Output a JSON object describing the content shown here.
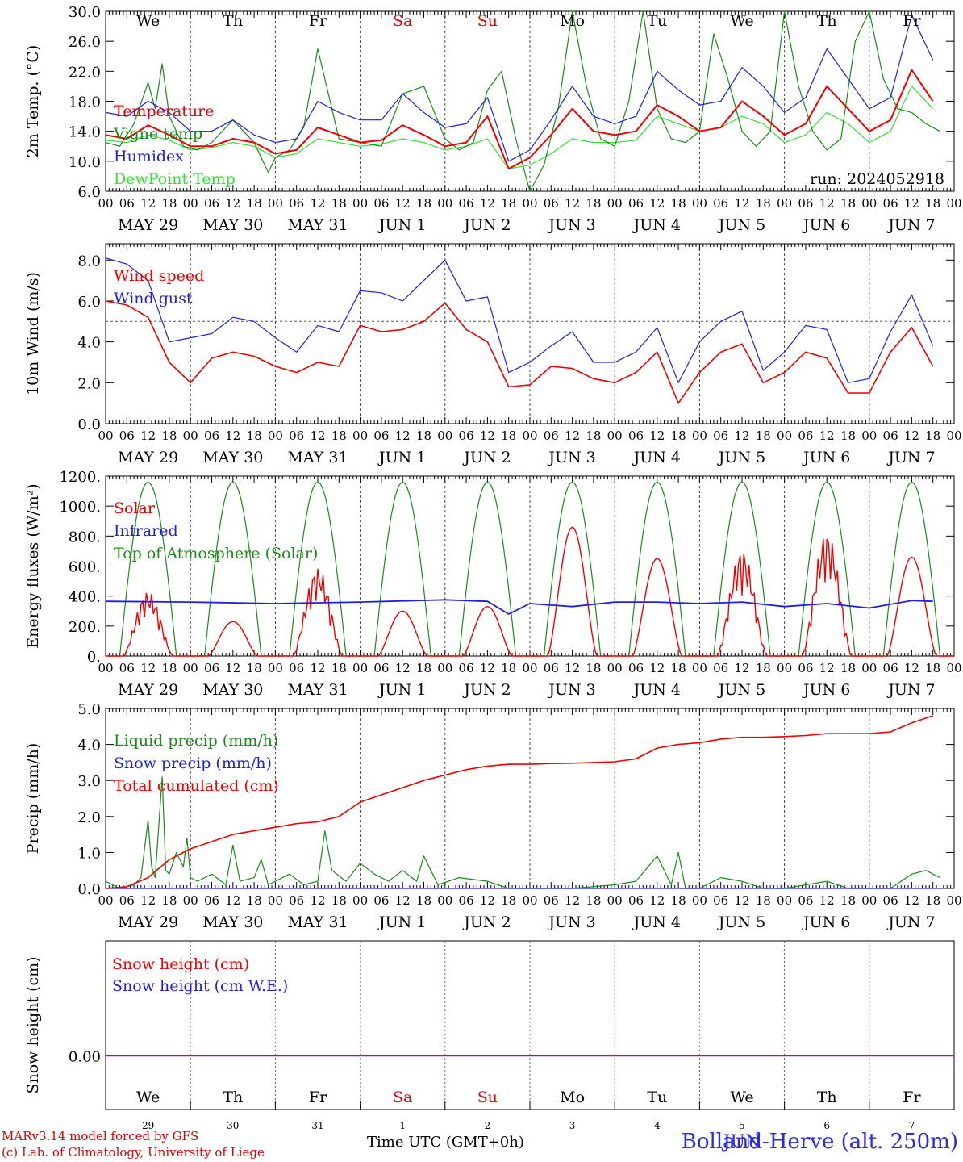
{
  "run_label": "run: 2024052918",
  "footer": {
    "credit1": "MARv3.14 model forced by GFS",
    "credit2": "(c) Lab. of Climatology, University of Liege",
    "xlabel": "Time UTC (GMT+0h)",
    "station": "Bolland-Herve (alt. 250m)",
    "month_label": "JUN"
  },
  "colors": {
    "red": "#ee0000",
    "green": "#1a8a1a",
    "blue": "#1f1fe0",
    "lightgreen": "#33e033",
    "purple": "#7a2a8a",
    "weekend": "#ee0000"
  },
  "weekday_labels": [
    {
      "text": "We",
      "weekend": false
    },
    {
      "text": "Th",
      "weekend": false
    },
    {
      "text": "Fr",
      "weekend": false
    },
    {
      "text": "Sa",
      "weekend": true
    },
    {
      "text": "Su",
      "weekend": true
    },
    {
      "text": "Mo",
      "weekend": false
    },
    {
      "text": "Tu",
      "weekend": false
    },
    {
      "text": "We",
      "weekend": false
    },
    {
      "text": "Th",
      "weekend": false
    },
    {
      "text": "Fr",
      "weekend": false
    }
  ],
  "date_labels": [
    "MAY 29",
    "MAY 30",
    "MAY 31",
    "JUN  1",
    "JUN  2",
    "JUN  3",
    "JUN  4",
    "JUN  5",
    "JUN  6",
    "JUN  7"
  ],
  "hour_labels": [
    "00",
    "06",
    "12",
    "18"
  ],
  "bottom_day_numbers": [
    "29",
    "30",
    "31",
    "1",
    "2",
    "3",
    "4",
    "5",
    "6",
    "7"
  ],
  "chart_data": [
    {
      "type": "line",
      "ylabel": "2m Temp. (°C)",
      "ylim": [
        6,
        30
      ],
      "yticks": [
        "6.0",
        "10.0",
        "14.0",
        "18.0",
        "22.0",
        "26.0",
        "30.0"
      ],
      "legend_placement": "left",
      "x_unit": "hours since 2024-05-29 00 UTC",
      "series": [
        {
          "name": "Temperature",
          "color": "#ee0000",
          "x": [
            0,
            6,
            12,
            18,
            24,
            30,
            36,
            42,
            48,
            54,
            60,
            66,
            72,
            78,
            84,
            90,
            96,
            102,
            108,
            114,
            120,
            126,
            132,
            138,
            144,
            150,
            156,
            162,
            168,
            174,
            180,
            186,
            192,
            198,
            204,
            210,
            216,
            222,
            228,
            234
          ],
          "y": [
            13.5,
            13.0,
            14.8,
            13.5,
            12.0,
            12.0,
            13.0,
            12.5,
            11.0,
            11.5,
            14.5,
            13.5,
            12.5,
            12.8,
            14.8,
            13.5,
            12.0,
            12.5,
            16.0,
            9.0,
            10.5,
            13.5,
            17.0,
            14.0,
            13.5,
            14.0,
            17.5,
            16.0,
            14.0,
            14.5,
            18.0,
            16.0,
            13.5,
            15.0,
            20.0,
            17.0,
            14.0,
            15.5,
            22.2,
            18.0
          ]
        },
        {
          "name": "Vigne temp",
          "color": "#1a8a1a",
          "x": [
            0,
            4,
            8,
            12,
            14,
            16,
            18,
            22,
            26,
            30,
            36,
            42,
            46,
            48,
            52,
            56,
            60,
            64,
            66,
            72,
            78,
            84,
            90,
            96,
            100,
            104,
            108,
            112,
            116,
            120,
            124,
            128,
            132,
            136,
            140,
            144,
            148,
            152,
            156,
            160,
            164,
            168,
            172,
            176,
            180,
            184,
            188,
            192,
            196,
            200,
            204,
            208,
            212,
            216,
            220,
            224,
            228,
            232,
            236
          ],
          "y": [
            12.5,
            12.0,
            15.0,
            20.5,
            17.0,
            23.0,
            16.0,
            12.0,
            11.5,
            12.5,
            15.5,
            12.5,
            8.5,
            10.5,
            11.5,
            14.5,
            25.0,
            17.0,
            13.0,
            12.5,
            12.0,
            19.0,
            20.0,
            13.0,
            11.5,
            12.5,
            19.5,
            22.0,
            13.0,
            6.0,
            9.5,
            17.0,
            30.0,
            20.0,
            13.0,
            12.0,
            18.0,
            30.0,
            17.0,
            13.0,
            12.5,
            14.0,
            27.0,
            21.0,
            14.0,
            12.0,
            14.0,
            30.0,
            20.0,
            14.0,
            11.5,
            13.0,
            26.0,
            30.0,
            21.0,
            17.0,
            16.5,
            15.0,
            14.0
          ]
        },
        {
          "name": "Humidex",
          "color": "#1f1fe0",
          "x": [
            0,
            6,
            12,
            18,
            24,
            30,
            36,
            42,
            48,
            54,
            60,
            66,
            72,
            78,
            84,
            90,
            96,
            102,
            108,
            114,
            120,
            126,
            132,
            138,
            144,
            150,
            156,
            162,
            168,
            174,
            180,
            186,
            192,
            198,
            204,
            210,
            216,
            222,
            228,
            234
          ],
          "y": [
            16.5,
            16.0,
            18.0,
            16.5,
            14.0,
            14.0,
            15.5,
            13.5,
            12.5,
            13.0,
            18.0,
            16.5,
            15.5,
            15.5,
            19.0,
            16.5,
            14.5,
            15.0,
            18.5,
            10.0,
            11.5,
            15.5,
            20.0,
            16.0,
            15.0,
            16.0,
            22.0,
            19.5,
            17.5,
            18.0,
            22.5,
            20.0,
            16.5,
            18.5,
            25.0,
            21.0,
            17.0,
            18.5,
            29.5,
            23.5
          ]
        },
        {
          "name": "DewPoint Temp",
          "color": "#33e033",
          "x": [
            0,
            6,
            12,
            18,
            24,
            30,
            36,
            42,
            48,
            54,
            60,
            66,
            72,
            78,
            84,
            90,
            96,
            102,
            108,
            114,
            120,
            126,
            132,
            138,
            144,
            150,
            156,
            162,
            168,
            174,
            180,
            186,
            192,
            198,
            204,
            210,
            216,
            222,
            228,
            234
          ],
          "y": [
            12.8,
            12.5,
            13.5,
            12.8,
            11.5,
            11.8,
            12.5,
            12.0,
            10.5,
            11.0,
            13.0,
            12.5,
            12.0,
            12.3,
            13.0,
            12.5,
            11.5,
            12.0,
            13.0,
            9.0,
            9.5,
            11.0,
            13.0,
            12.5,
            12.5,
            12.8,
            16.0,
            15.0,
            14.0,
            14.5,
            16.0,
            15.0,
            12.5,
            13.5,
            16.5,
            15.0,
            12.5,
            14.0,
            20.0,
            17.0
          ]
        }
      ]
    },
    {
      "type": "line",
      "ylabel": "10m Wind (m/s)",
      "ylim": [
        0,
        8.8
      ],
      "yticks": [
        "0.0",
        "2.0",
        "4.0",
        "6.0",
        "8.0"
      ],
      "reference_line": 5.0,
      "x_unit": "hours since 2024-05-29 00 UTC",
      "series": [
        {
          "name": "Wind speed",
          "color": "#ee0000",
          "x": [
            0,
            6,
            12,
            18,
            24,
            30,
            36,
            42,
            48,
            54,
            60,
            66,
            72,
            78,
            84,
            90,
            96,
            102,
            108,
            114,
            120,
            126,
            132,
            138,
            144,
            150,
            156,
            162,
            168,
            174,
            180,
            186,
            192,
            198,
            204,
            210,
            216,
            222,
            228,
            234
          ],
          "y": [
            6.0,
            5.8,
            5.2,
            3.0,
            2.0,
            3.2,
            3.5,
            3.3,
            2.8,
            2.5,
            3.0,
            2.8,
            4.8,
            4.5,
            4.6,
            5.0,
            5.9,
            4.6,
            4.0,
            1.8,
            1.9,
            2.8,
            2.7,
            2.2,
            2.0,
            2.5,
            3.5,
            1.0,
            2.5,
            3.5,
            3.9,
            2.0,
            2.5,
            3.5,
            3.2,
            1.5,
            1.5,
            3.5,
            4.7,
            2.8
          ]
        },
        {
          "name": "Wind gust",
          "color": "#1f1fe0",
          "x": [
            0,
            6,
            12,
            18,
            24,
            30,
            36,
            42,
            48,
            54,
            60,
            66,
            72,
            78,
            84,
            90,
            96,
            102,
            108,
            114,
            120,
            126,
            132,
            138,
            144,
            150,
            156,
            162,
            168,
            174,
            180,
            186,
            192,
            198,
            204,
            210,
            216,
            222,
            228,
            234
          ],
          "y": [
            8.1,
            7.8,
            7.0,
            4.0,
            4.2,
            4.4,
            5.2,
            5.0,
            4.2,
            3.5,
            4.8,
            4.5,
            6.5,
            6.4,
            6.0,
            7.0,
            8.0,
            6.0,
            6.2,
            2.5,
            3.0,
            3.8,
            4.5,
            3.0,
            3.0,
            3.5,
            4.7,
            2.0,
            4.0,
            5.0,
            5.5,
            2.6,
            3.5,
            4.8,
            4.6,
            2.0,
            2.2,
            4.5,
            6.3,
            3.8
          ]
        }
      ]
    },
    {
      "type": "line",
      "ylabel": "Energy fluxes (W/m²)",
      "ylim": [
        0,
        1200
      ],
      "yticks": [
        "0.",
        "200.",
        "400.",
        "600.",
        "800.",
        "1000.",
        "1200."
      ],
      "x_unit": "hours since 2024-05-29 00 UTC",
      "day_peaks": {
        "name": "Solar",
        "values": [
          430,
          230,
          590,
          300,
          330,
          860,
          650,
          710,
          830,
          660
        ]
      },
      "series": [
        {
          "name": "Solar",
          "color": "#ee0000"
        },
        {
          "name": "Infrared",
          "color": "#1f1fe0",
          "x": [
            0,
            24,
            48,
            72,
            96,
            108,
            114,
            120,
            132,
            144,
            156,
            168,
            180,
            192,
            204,
            216,
            228,
            234
          ],
          "y": [
            365,
            360,
            350,
            360,
            375,
            365,
            280,
            350,
            330,
            360,
            360,
            350,
            360,
            330,
            350,
            320,
            370,
            365
          ]
        },
        {
          "name": "Top of Atmosphere (Solar)",
          "color": "#1a8a1a",
          "peak": 1160,
          "rise_hour": 4,
          "set_hour": 20
        }
      ]
    },
    {
      "type": "line",
      "ylabel": "Precip (mm/h)",
      "ylim": [
        0,
        5
      ],
      "yticks": [
        "0.0",
        "1.0",
        "2.0",
        "3.0",
        "4.0",
        "5.0"
      ],
      "x_unit": "hours since 2024-05-29 00 UTC",
      "series": [
        {
          "name": "Liquid precip (mm/h)",
          "color": "#1a8a1a",
          "x": [
            0,
            4,
            8,
            10,
            12,
            13,
            14,
            16,
            17,
            18,
            20,
            22,
            23,
            24,
            26,
            30,
            34,
            36,
            38,
            42,
            44,
            46,
            48,
            52,
            56,
            60,
            62,
            64,
            68,
            72,
            76,
            80,
            84,
            88,
            90,
            94,
            100,
            108,
            114,
            120,
            132,
            144,
            150,
            156,
            160,
            162,
            164,
            168,
            174,
            180,
            186,
            192,
            204,
            210,
            216,
            222,
            228,
            232,
            236
          ],
          "y": [
            0.2,
            0.0,
            0.1,
            0.3,
            1.9,
            0.6,
            0.3,
            3.1,
            0.5,
            0.4,
            1.0,
            0.6,
            1.4,
            0.3,
            0.2,
            0.4,
            0.1,
            1.2,
            0.2,
            0.3,
            0.8,
            0.1,
            0.2,
            0.4,
            0.1,
            0.2,
            1.6,
            0.5,
            0.2,
            0.7,
            0.4,
            0.2,
            0.5,
            0.2,
            0.9,
            0.1,
            0.3,
            0.2,
            0.0,
            0.0,
            0.0,
            0.1,
            0.2,
            0.9,
            0.1,
            1.0,
            0.0,
            0.0,
            0.3,
            0.2,
            0.0,
            0.0,
            0.2,
            0.0,
            0.0,
            0.0,
            0.4,
            0.5,
            0.3
          ]
        },
        {
          "name": "Snow precip (mm/h)",
          "color": "#1f1fe0",
          "x": [
            0,
            236
          ],
          "y": [
            0,
            0
          ]
        },
        {
          "name": "Total cumulated (cm)",
          "color": "#ee0000",
          "x": [
            0,
            6,
            12,
            18,
            24,
            30,
            36,
            42,
            48,
            54,
            60,
            66,
            72,
            78,
            84,
            90,
            96,
            102,
            108,
            114,
            120,
            126,
            132,
            138,
            144,
            150,
            156,
            162,
            168,
            174,
            180,
            186,
            192,
            198,
            204,
            210,
            216,
            222,
            228,
            234
          ],
          "y": [
            0.0,
            0.05,
            0.3,
            0.8,
            1.1,
            1.3,
            1.5,
            1.6,
            1.7,
            1.8,
            1.85,
            2.0,
            2.4,
            2.6,
            2.8,
            3.0,
            3.15,
            3.3,
            3.4,
            3.45,
            3.45,
            3.47,
            3.48,
            3.5,
            3.52,
            3.6,
            3.9,
            4.0,
            4.05,
            4.15,
            4.2,
            4.2,
            4.22,
            4.25,
            4.3,
            4.3,
            4.3,
            4.35,
            4.6,
            4.8
          ]
        }
      ]
    },
    {
      "type": "line",
      "ylabel": "Snow height (cm)",
      "yticks": [
        "0.00"
      ],
      "x_unit": "hours since 2024-05-29 00 UTC",
      "series": [
        {
          "name": "Snow height (cm)",
          "color": "#ee0000",
          "x": [
            0,
            236
          ],
          "y": [
            0,
            0
          ]
        },
        {
          "name": "Snow height (cm W.E.)",
          "color": "#1f1fe0",
          "x": [
            0,
            236
          ],
          "y": [
            0,
            0
          ]
        }
      ]
    }
  ]
}
